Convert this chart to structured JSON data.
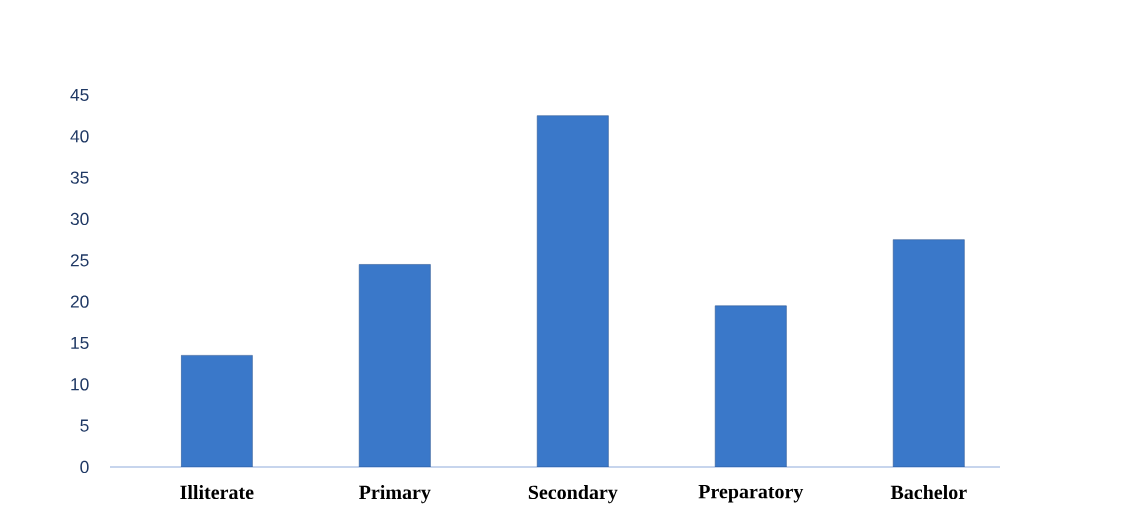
{
  "chart_data": {
    "type": "bar",
    "categories": [
      "Illiterate",
      "Primary",
      "Secondary",
      "Preparatory",
      "Bachelor"
    ],
    "values": [
      13.5,
      24.5,
      42.5,
      19.5,
      27.5
    ],
    "color": "#3a78c9",
    "ylim": [
      0,
      45
    ],
    "yticks": [
      0,
      5,
      10,
      15,
      20,
      25,
      30,
      35,
      40,
      45
    ]
  }
}
